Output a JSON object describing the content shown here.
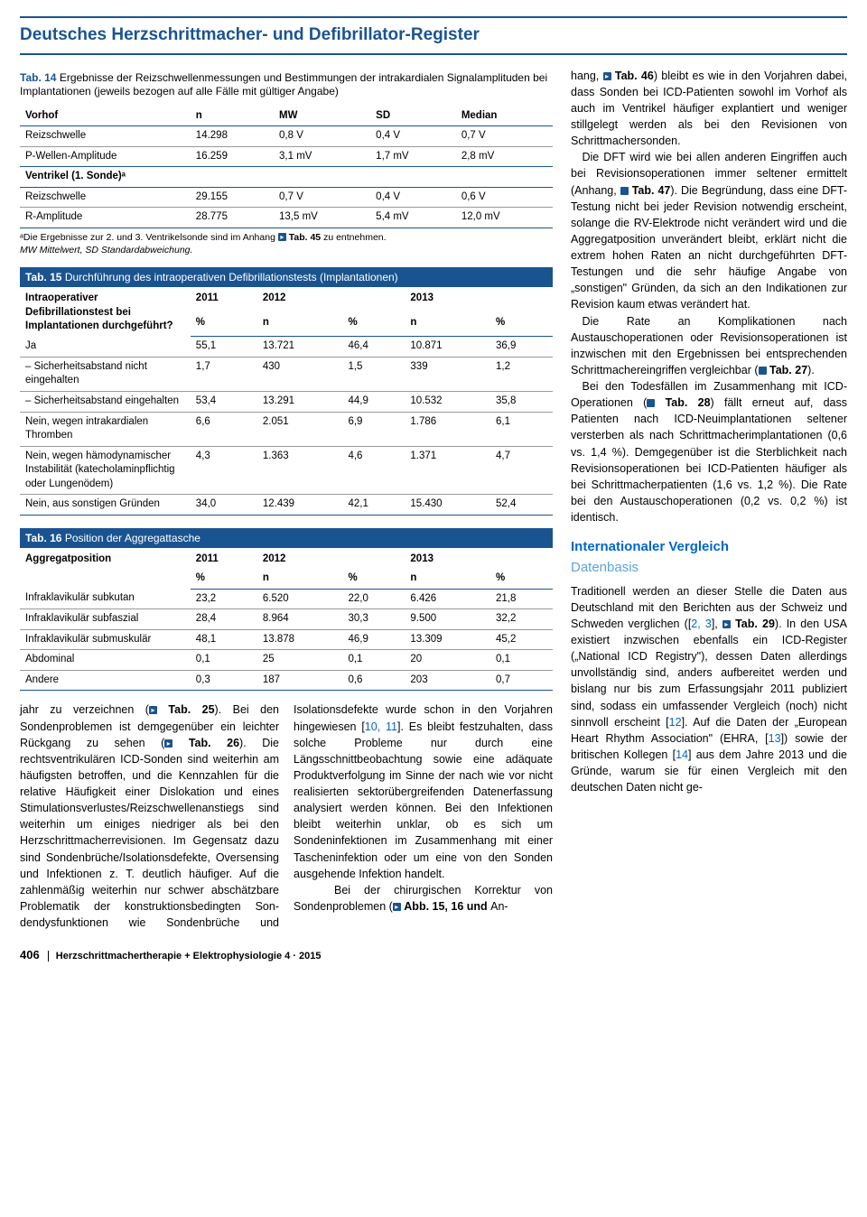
{
  "header": {
    "title": "Deutsches Herzschrittmacher- und Defibrillator-Register"
  },
  "tab14": {
    "label": "Tab. 14",
    "caption": "Ergebnisse der Reizschwellenmessungen und Bestimmungen der intrakardialen Signalamplituden bei Implantationen (jeweils bezogen auf alle Fälle mit gültiger Angabe)",
    "cols": [
      "",
      "n",
      "MW",
      "SD",
      "Median"
    ],
    "section1": "Vorhof",
    "rows1": [
      [
        "Reizschwelle",
        "14.298",
        "0,8 V",
        "0,4 V",
        "0,7 V"
      ],
      [
        "P-Wellen-Amplitude",
        "16.259",
        "3,1 mV",
        "1,7 mV",
        "2,8 mV"
      ]
    ],
    "section2": "Ventrikel (1. Sonde)ᵃ",
    "rows2": [
      [
        "Reizschwelle",
        "29.155",
        "0,7 V",
        "0,4 V",
        "0,6 V"
      ],
      [
        "R-Amplitude",
        "28.775",
        "13,5 mV",
        "5,4 mV",
        "12,0 mV"
      ]
    ],
    "footnote_a": "ᵃDie Ergebnisse zur 2. und 3. Ventrikelsonde sind im Anhang ",
    "footnote_b": " Tab. 45",
    "footnote_c": " zu entnehmen.",
    "footnote2": "MW Mittelwert, SD Standardabweichung."
  },
  "tab15": {
    "label": "Tab. 15",
    "caption": "Durchführung des intraoperativen Defibrillationstests (Implantationen)",
    "header1": [
      "Intraoperativer Defibrillationstest bei Implantationen durchgeführt?",
      "2011",
      "2012",
      "",
      "2013",
      ""
    ],
    "header2": [
      "",
      "%",
      "n",
      "%",
      "n",
      "%"
    ],
    "rows": [
      [
        "Ja",
        "55,1",
        "13.721",
        "46,4",
        "10.871",
        "36,9"
      ],
      [
        "– Sicherheitsabstand nicht eingehalten",
        "1,7",
        "430",
        "1,5",
        "339",
        "1,2"
      ],
      [
        "– Sicherheitsabstand eingehalten",
        "53,4",
        "13.291",
        "44,9",
        "10.532",
        "35,8"
      ],
      [
        "Nein, wegen intrakardialen Thromben",
        "6,6",
        "2.051",
        "6,9",
        "1.786",
        "6,1"
      ],
      [
        "Nein, wegen hämodynamischer Instabilität (katecholaminpflichtig oder Lungenödem)",
        "4,3",
        "1.363",
        "4,6",
        "1.371",
        "4,7"
      ],
      [
        "Nein, aus sonstigen Gründen",
        "34,0",
        "12.439",
        "42,1",
        "15.430",
        "52,4"
      ]
    ]
  },
  "tab16": {
    "label": "Tab. 16",
    "caption": "Position der Aggregattasche",
    "header1": [
      "Aggregatposition",
      "2011",
      "2012",
      "",
      "2013",
      ""
    ],
    "header2": [
      "",
      "%",
      "n",
      "%",
      "n",
      "%"
    ],
    "rows": [
      [
        "Infraklavikulär subkutan",
        "23,2",
        "6.520",
        "22,0",
        "6.426",
        "21,8"
      ],
      [
        "Infraklavikulär subfaszial",
        "28,4",
        "8.964",
        "30,3",
        "9.500",
        "32,2"
      ],
      [
        "Infraklavikulär submuskulär",
        "48,1",
        "13.878",
        "46,9",
        "13.309",
        "45,2"
      ],
      [
        "Abdominal",
        "0,1",
        "25",
        "0,1",
        "20",
        "0,1"
      ],
      [
        "Andere",
        "0,3",
        "187",
        "0,6",
        "203",
        "0,7"
      ]
    ]
  },
  "bodytext": {
    "left": "jahr zu verzeichnen (▪ Tab. 25). Bei den Sondenproblemen ist demgegenüber ein leichter Rückgang zu sehen (▪ Tab. 26). Die rechtsventrikulären ICD-Sonden sind weiterhin am häufigsten betroffen, und die Kennzahlen für die relative Häufigkeit einer Dislokation und eines Stimulationsverlustes/Reizschwellenanstiegs sind weiterhin um einiges niedriger als bei den Herzschrittmacherrevisionen. Im Gegensatz dazu sind Sondenbrüche/Isolationsdefekte, Oversensing und Infektionen z. T. deutlich häufiger. Auf die zahlenmäßig weiterhin nur schwer abschätzbare Problematik der konstruktionsbedingten Son-",
    "mid": "dendysfunktionen wie Sondenbrüche und Isolationsdefekte wurde schon in den Vorjahren hingewiesen [10, 11]. Es bleibt festzuhalten, dass solche Probleme nur durch eine Längsschnittbeobachtung sowie eine adäquate Produktverfolgung im Sinne der nach wie vor nicht realisierten sektorübergreifenden Datenerfassung analysiert werden können. Bei den Infektionen bleibt weiterhin unklar, ob es sich um Sondeninfektionen im Zusammenhang mit einer Tascheninfektion oder um eine von den Sonden ausgehende Infektion handelt.",
    "mid2": "Bei der chirurgischen Korrektur von Sondenproblemen (▪ Abb. 15, 16 und An-"
  },
  "rightcol": {
    "p1": "hang, ▪ Tab. 46) bleibt es wie in den Vorjahren dabei, dass Sonden bei ICD-Patienten sowohl im Vorhof als auch im Ventrikel häufiger explantiert und weniger stillgelegt werden als bei den Revisionen von Schrittmachersonden.",
    "p2": "Die DFT wird wie bei allen anderen Eingriffen auch bei Revisionsoperationen immer seltener ermittelt (Anhang, ▪ Tab. 47). Die Begründung, dass eine DFT-Testung nicht bei jeder Revision notwendig erscheint, solange die RV-Elektrode nicht verändert wird und die Aggregatposition unverändert bleibt, erklärt nicht die extrem hohen Raten an nicht durchgeführten DFT-Testungen und die sehr häufige Angabe von „sonstigen\" Gründen, da sich an den Indikationen zur Revision kaum etwas verändert hat.",
    "p3": "Die Rate an Komplikationen nach Austauschoperationen oder Revisionsoperationen ist inzwischen mit den Ergebnissen bei entsprechenden Schrittmachereingriffen vergleichbar (▪ Tab. 27).",
    "p4": "Bei den Todesfällen im Zusammenhang mit ICD-Operationen (▪ Tab. 28) fällt erneut auf, dass Patienten nach ICD-Neuimplantationen seltener versterben als nach Schrittmacherimplantationen (0,6 vs. 1,4 %). Demgegenüber ist die Sterblichkeit nach Revisionsoperationen bei ICD-Patienten häufiger als bei Schrittmacherpatienten (1,6 vs. 1,2 %). Die Rate bei den Austauschoperationen (0,2 vs. 0,2 %) ist identisch.",
    "h1": "Internationaler Vergleich",
    "h2": "Datenbasis",
    "p5": "Traditionell werden an dieser Stelle die Daten aus Deutschland mit den Berichten aus der Schweiz und Schweden verglichen ([2, 3], ▪ Tab. 29). In den USA existiert inzwischen ebenfalls ein ICD-Register („National ICD Registry\"), dessen Daten allerdings unvollständig sind, anders aufbereitet werden und bislang nur bis zum Erfassungsjahr 2011 publiziert sind, sodass ein umfassender Vergleich (noch) nicht sinnvoll erscheint [12]. Auf die Daten der „European Heart Rhythm Association\" (EHRA, [13]) sowie der britischen Kollegen [14] aus dem Jahre 2013 und die Gründe, warum sie für einen Vergleich mit den deutschen Daten nicht ge-"
  },
  "footer": {
    "page": "406",
    "journal": "Herzschrittmachertherapie + Elektrophysiologie 4 · 2015"
  }
}
